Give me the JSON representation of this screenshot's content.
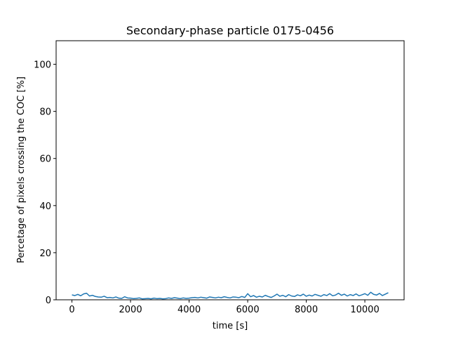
{
  "chart_data": {
    "type": "line",
    "title": "Secondary-phase particle 0175-0456",
    "xlabel": "time [s]",
    "ylabel": "Percetage of pixels crossing the COC [%]",
    "xlim": [
      -540,
      11340
    ],
    "ylim": [
      0,
      110
    ],
    "xticks": [
      0,
      2000,
      4000,
      6000,
      8000,
      10000
    ],
    "yticks": [
      0,
      20,
      40,
      60,
      80,
      100
    ],
    "grid": false,
    "series": [
      {
        "color": "#1f77b4",
        "x": [
          0,
          100,
          200,
          300,
          400,
          500,
          600,
          700,
          800,
          900,
          1000,
          1100,
          1200,
          1300,
          1400,
          1500,
          1600,
          1700,
          1800,
          1900,
          2000,
          2100,
          2200,
          2300,
          2400,
          2500,
          2600,
          2700,
          2800,
          2900,
          3000,
          3100,
          3200,
          3300,
          3400,
          3500,
          3600,
          3700,
          3800,
          3900,
          4000,
          4100,
          4200,
          4300,
          4400,
          4500,
          4600,
          4700,
          4800,
          4900,
          5000,
          5100,
          5200,
          5300,
          5400,
          5500,
          5600,
          5700,
          5800,
          5900,
          6000,
          6100,
          6200,
          6300,
          6400,
          6500,
          6600,
          6700,
          6800,
          6900,
          7000,
          7100,
          7200,
          7300,
          7400,
          7500,
          7600,
          7700,
          7800,
          7900,
          8000,
          8100,
          8200,
          8300,
          8400,
          8500,
          8600,
          8700,
          8800,
          8900,
          9000,
          9100,
          9200,
          9300,
          9400,
          9500,
          9600,
          9700,
          9800,
          9900,
          10000,
          10100,
          10200,
          10300,
          10400,
          10500,
          10600,
          10700,
          10800
        ],
        "y": [
          2.1,
          1.8,
          2.3,
          1.7,
          2.5,
          2.8,
          1.6,
          1.9,
          1.4,
          1.2,
          1.1,
          1.5,
          0.9,
          1.0,
          0.8,
          1.2,
          0.7,
          0.6,
          1.3,
          0.8,
          0.7,
          0.5,
          0.6,
          0.8,
          0.4,
          0.5,
          0.6,
          0.4,
          0.7,
          0.5,
          0.6,
          0.4,
          0.5,
          0.8,
          0.6,
          0.9,
          0.7,
          0.5,
          0.8,
          0.6,
          0.7,
          0.9,
          1.0,
          0.8,
          1.1,
          0.9,
          0.7,
          1.2,
          1.0,
          0.8,
          1.1,
          0.9,
          1.3,
          1.0,
          0.8,
          1.2,
          1.1,
          0.9,
          1.4,
          1.0,
          2.6,
          1.3,
          1.8,
          1.1,
          1.5,
          1.2,
          1.9,
          1.4,
          1.0,
          1.6,
          2.4,
          1.5,
          1.9,
          1.3,
          2.2,
          1.6,
          1.4,
          2.1,
          1.7,
          2.4,
          1.5,
          2.0,
          1.6,
          2.3,
          1.9,
          1.5,
          2.2,
          1.8,
          2.6,
          1.7,
          2.0,
          2.8,
          1.9,
          2.4,
          1.6,
          2.2,
          1.8,
          2.5,
          1.7,
          2.1,
          2.6,
          1.9,
          3.2,
          2.3,
          2.0,
          2.7,
          1.8,
          2.4,
          3.0
        ]
      }
    ]
  }
}
